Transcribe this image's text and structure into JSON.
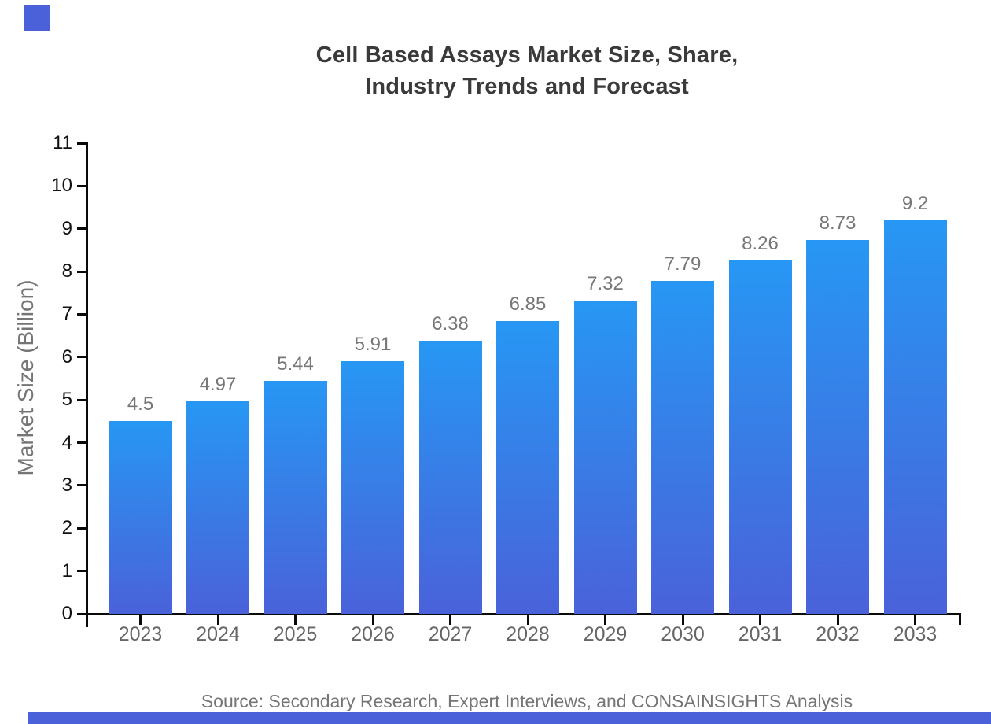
{
  "brand": {
    "accent_color": "#4a61d9"
  },
  "title": {
    "line1": "Cell Based Assays Market Size, Share,",
    "line2": "Industry Trends and Forecast"
  },
  "source": "Source: Secondary Research, Expert Interviews, and CONSAINSIGHTS Analysis",
  "chart_data": {
    "type": "bar",
    "title": "Cell Based Assays Market Size, Share, Industry Trends and Forecast",
    "categories": [
      "2023",
      "2024",
      "2025",
      "2026",
      "2027",
      "2028",
      "2029",
      "2030",
      "2031",
      "2032",
      "2033"
    ],
    "values": [
      4.5,
      4.97,
      5.44,
      5.91,
      6.38,
      6.85,
      7.32,
      7.79,
      8.26,
      8.73,
      9.2
    ],
    "value_labels": [
      "4.5",
      "4.97",
      "5.44",
      "5.91",
      "6.38",
      "6.85",
      "7.32",
      "7.79",
      "8.26",
      "8.73",
      "9.2"
    ],
    "xlabel": "",
    "ylabel": "Market Size (Billion)",
    "ylim": [
      0,
      11
    ],
    "yticks": [
      0,
      1,
      2,
      3,
      4,
      5,
      6,
      7,
      8,
      9,
      10,
      11
    ],
    "grid": false,
    "legend": false,
    "bar_color_top": "#2797f4",
    "bar_color_bottom": "#4a62d9",
    "axis_color": "#0a0a0a",
    "label_color": "#777777"
  }
}
